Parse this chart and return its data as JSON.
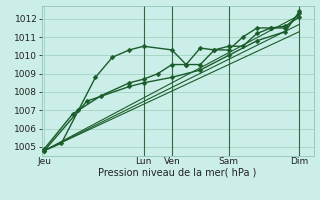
{
  "bg_color": "#cceee8",
  "plot_bg_color": "#cceee8",
  "grid_color": "#99ccbb",
  "line_color": "#1a5c2a",
  "xlabel": "Pression niveau de la mer( hPa )",
  "ylim": [
    1004.5,
    1012.7
  ],
  "yticks": [
    1005,
    1006,
    1007,
    1008,
    1009,
    1010,
    1011,
    1012
  ],
  "day_labels": [
    "Jeu",
    "Lun",
    "Ven",
    "Sam",
    "Dim"
  ],
  "day_x": [
    0.0,
    3.5,
    4.5,
    6.5,
    9.0
  ],
  "vline_x": [
    3.5,
    4.5,
    6.5,
    9.0
  ],
  "xlim": [
    -0.1,
    9.5
  ],
  "series": [
    {
      "x": [
        0.0,
        0.6,
        1.2,
        1.8,
        2.4,
        3.0,
        3.5,
        4.5,
        5.0,
        5.5,
        6.0,
        6.5,
        7.0,
        7.5,
        8.0,
        8.5,
        9.0
      ],
      "y": [
        1004.8,
        1005.2,
        1007.0,
        1008.8,
        1009.9,
        1010.3,
        1010.5,
        1010.3,
        1009.5,
        1010.4,
        1010.3,
        1010.3,
        1011.0,
        1011.5,
        1011.5,
        1011.5,
        1012.3
      ],
      "marker": "D",
      "ms": 2.5,
      "lw": 1.0
    },
    {
      "x": [
        0.0,
        1.0,
        2.0,
        3.0,
        3.5,
        4.0,
        4.5,
        5.0,
        5.5,
        6.0,
        6.5,
        7.0,
        7.5,
        8.0,
        8.5,
        9.0
      ],
      "y": [
        1004.9,
        1006.8,
        1007.8,
        1008.5,
        1008.7,
        1009.0,
        1009.5,
        1009.5,
        1009.5,
        1010.3,
        1010.5,
        1010.5,
        1011.2,
        1011.5,
        1011.6,
        1012.1
      ],
      "marker": "D",
      "ms": 2.5,
      "lw": 1.0
    },
    {
      "x": [
        0.0,
        1.5,
        3.0,
        3.5,
        4.5,
        5.5,
        6.5,
        7.5,
        8.5,
        9.0
      ],
      "y": [
        1004.8,
        1007.5,
        1008.3,
        1008.5,
        1008.8,
        1009.2,
        1010.0,
        1010.8,
        1011.3,
        1012.4
      ],
      "marker": "D",
      "ms": 2.5,
      "lw": 1.0
    },
    {
      "x": [
        0.0,
        9.0
      ],
      "y": [
        1004.8,
        1012.2
      ],
      "marker": null,
      "ms": 0,
      "lw": 0.8,
      "linestyle": "-"
    },
    {
      "x": [
        0.0,
        9.0
      ],
      "y": [
        1004.8,
        1011.7
      ],
      "marker": null,
      "ms": 0,
      "lw": 0.8,
      "linestyle": "-"
    },
    {
      "x": [
        0.0,
        9.0
      ],
      "y": [
        1004.8,
        1011.3
      ],
      "marker": null,
      "ms": 0,
      "lw": 0.8,
      "linestyle": "-"
    }
  ]
}
